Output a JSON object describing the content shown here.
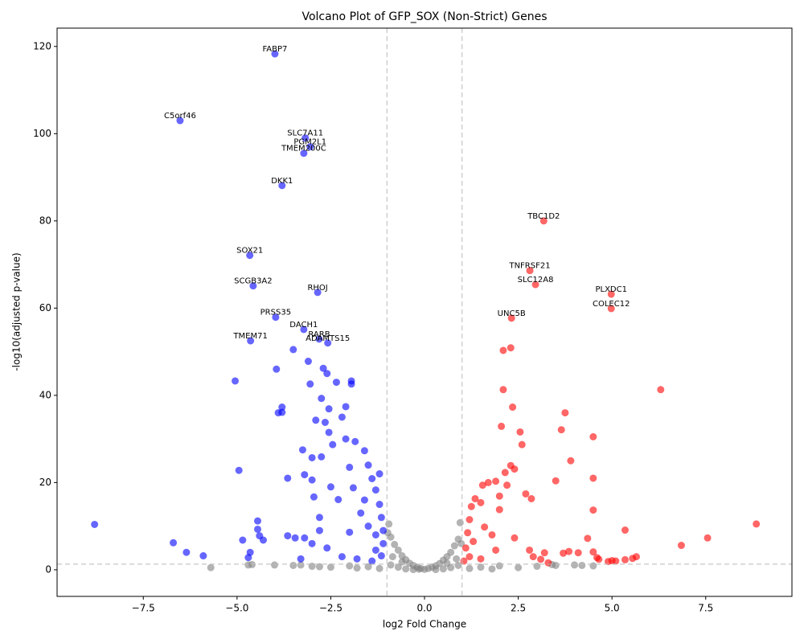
{
  "chart_data": {
    "type": "scatter",
    "title": "Volcano Plot of GFP_SOX (Non-Strict) Genes",
    "x_label": "log2 Fold Change",
    "y_label": "-log10(adjusted p-value)",
    "xlim": [
      -9.8,
      9.8
    ],
    "ylim": [
      -6.1,
      124.2
    ],
    "xticks": [
      {
        "value": -7.5,
        "label": "−7.5"
      },
      {
        "value": -5,
        "label": "−5.0"
      },
      {
        "value": -2.5,
        "label": "−2.5"
      },
      {
        "value": 0,
        "label": "0.0"
      },
      2.5,
      {
        "value": 5,
        "label": "5.0"
      },
      7.5
    ],
    "yticks": [
      0,
      20,
      40,
      60,
      80,
      100,
      120
    ],
    "grid": false,
    "vlines": [
      -1,
      1
    ],
    "hlines": [
      1.3
    ],
    "series": [
      {
        "color": "#808080",
        "x": [
          0,
          0.1,
          -0.1,
          0.2,
          -0.2,
          0.3,
          -0.3,
          0.4,
          -0.4,
          0.5,
          -0.5,
          0.6,
          -0.6,
          0.7,
          -0.7,
          0.8,
          -0.8,
          0.9,
          -0.9,
          0.95,
          -0.95,
          -0.98,
          0.98,
          0.5,
          -0.5,
          0.7,
          -0.7,
          0.9,
          -0.9,
          -0.85,
          0.85,
          -0.6,
          0.6,
          1.5,
          2,
          2.5,
          3,
          3.5,
          4,
          4.5,
          1.2,
          -1.2,
          -1.5,
          -2,
          -2.5,
          -3,
          -3.5,
          -4,
          -4.6,
          -4.7,
          -5.7,
          -3.3,
          -2.8,
          -1.8,
          3.4,
          4.2,
          1.8,
          -0.3,
          0.3,
          -0.15
        ],
        "values": [
          0.1,
          0.3,
          0.3,
          0.6,
          0.6,
          0.9,
          1,
          1.4,
          1.5,
          2.2,
          2.3,
          3,
          3.2,
          4,
          4.5,
          5.5,
          5.8,
          7,
          7.5,
          10.8,
          10.5,
          8.5,
          6,
          0.2,
          0.2,
          0.5,
          0.6,
          1,
          1.1,
          3,
          2.5,
          1.8,
          1.5,
          0.6,
          0.9,
          0.5,
          0.8,
          1,
          1.1,
          0.9,
          0.3,
          0.3,
          0.7,
          0.9,
          0.6,
          0.8,
          1,
          1.1,
          1.2,
          1.1,
          0.5,
          1.1,
          0.7,
          0.4,
          1.2,
          1,
          0.2,
          0.05,
          0.05,
          0.15
        ]
      },
      {
        "color": "#0000ff",
        "x": [
          -3.99,
          -6.52,
          -3.18,
          -3.05,
          -3.22,
          -3.8,
          -4.66,
          -4.57,
          -2.85,
          -3.97,
          -3.22,
          -2.81,
          -2.58,
          -4.64,
          -8.8,
          -6.7,
          -6.35,
          -5.9,
          -5.05,
          -4.95,
          -4.85,
          -4.7,
          -4.65,
          -4.45,
          -4.45,
          -4.4,
          -4.3,
          -3.95,
          -3.9,
          -3.8,
          -3.8,
          -3.65,
          -3.65,
          -3.5,
          -3.45,
          -3.25,
          -3.2,
          -3.2,
          -3.1,
          -3.05,
          -3,
          -3,
          -2.95,
          -2.9,
          -2.75,
          -2.75,
          -2.7,
          -2.65,
          -2.6,
          -2.55,
          -2.55,
          -2.45,
          -2.35,
          -2.2,
          -2.1,
          -2.1,
          -1.95,
          -1.95,
          -1.85,
          -1.6,
          -1.5,
          -1.4,
          -1.3,
          -1.2,
          -1.15,
          -1.1,
          -1.1,
          -1.15,
          -1.3,
          -1.5,
          -1.7,
          -1.9,
          -2,
          -2.3,
          -2.5,
          -2.8,
          -3,
          -2.2,
          -1.8,
          -1.4,
          -2.6,
          -3.3,
          -2.8,
          -2,
          -1.6,
          -1.3,
          -1.2
        ],
        "values": [
          118.3,
          103,
          99,
          97,
          95.5,
          88.1,
          72.1,
          65.1,
          63.6,
          57.9,
          55.1,
          52.9,
          52,
          52.5,
          10.4,
          6.2,
          4,
          3.2,
          43.3,
          22.8,
          6.8,
          2.8,
          4,
          11.2,
          9.3,
          7.8,
          6.8,
          46,
          36,
          37.3,
          36.1,
          21,
          7.8,
          50.5,
          7.3,
          27.5,
          21.8,
          7.3,
          47.8,
          42.6,
          25.7,
          20.6,
          16.7,
          34.3,
          39.3,
          25.9,
          46.2,
          33.8,
          45,
          36.9,
          31.5,
          28.7,
          43,
          35,
          37.4,
          30,
          43.3,
          42.6,
          29.4,
          27.3,
          24,
          20.9,
          18.3,
          15,
          12,
          9,
          6,
          3.2,
          4.5,
          10,
          13,
          18.8,
          8.6,
          16.1,
          19,
          9,
          6,
          3,
          2.5,
          2,
          5,
          2.5,
          12,
          23.5,
          16,
          8,
          22
        ]
      },
      {
        "color": "#ff0000",
        "x": [
          3.18,
          2.81,
          2.96,
          4.98,
          4.98,
          2.32,
          8.85,
          7.55,
          6.85,
          6.3,
          5.65,
          5.55,
          5.35,
          5.35,
          5.1,
          5,
          4.9,
          4.65,
          4.6,
          4.5,
          4.5,
          4.5,
          4.5,
          4.35,
          4.1,
          3.9,
          3.85,
          3.75,
          3.7,
          3.65,
          3.5,
          3.2,
          3.1,
          2.85,
          2.8,
          2.7,
          2.6,
          2.55,
          2.4,
          2.3,
          2.3,
          2.35,
          2.1,
          2.1,
          2.05,
          2.15,
          2.2,
          2,
          1.9,
          1.7,
          1.55,
          1.5,
          1.35,
          1.25,
          1.2,
          1.15,
          1.1,
          1.2,
          1.5,
          1.8,
          2,
          2.4,
          1.6,
          2.9,
          3.3,
          1.3,
          1.05,
          1.9
        ],
        "values": [
          80,
          68.6,
          65.4,
          63.2,
          59.9,
          57.7,
          10.5,
          7.3,
          5.6,
          41.3,
          3,
          2.6,
          9.1,
          2.3,
          2,
          2.1,
          1.9,
          2.4,
          2.8,
          21,
          13.7,
          30.5,
          4.1,
          7.2,
          3.9,
          25,
          4.2,
          36,
          3.8,
          32.1,
          20.4,
          3.9,
          2.4,
          16.3,
          4.5,
          17.4,
          28.7,
          31.6,
          23.1,
          23.9,
          50.9,
          37.3,
          50.3,
          41.3,
          32.9,
          22.3,
          19.4,
          16.9,
          20.3,
          20,
          19.4,
          15.4,
          16.3,
          14.5,
          11.5,
          8.5,
          5,
          3,
          2.5,
          8,
          13.8,
          7.3,
          9.8,
          3,
          1.6,
          6.5,
          2,
          4.5
        ]
      }
    ],
    "annotations": [
      {
        "text": "FABP7",
        "x": -3.99,
        "y": 118.3
      },
      {
        "text": "C5orf46",
        "x": -6.52,
        "y": 103
      },
      {
        "text": "SLC7A11",
        "x": -3.18,
        "y": 99
      },
      {
        "text": "PGM2L1",
        "x": -3.05,
        "y": 97
      },
      {
        "text": "TMEM200C",
        "x": -3.22,
        "y": 95.5
      },
      {
        "text": "DKK1",
        "x": -3.8,
        "y": 88.1
      },
      {
        "text": "SOX21",
        "x": -4.66,
        "y": 72.1
      },
      {
        "text": "SCGB3A2",
        "x": -4.57,
        "y": 65.1
      },
      {
        "text": "RHOJ",
        "x": -2.85,
        "y": 63.6
      },
      {
        "text": "PRSS35",
        "x": -3.97,
        "y": 57.9
      },
      {
        "text": "DACH1",
        "x": -3.22,
        "y": 55.1
      },
      {
        "text": "RARB",
        "x": -2.81,
        "y": 52.9
      },
      {
        "text": "ADAMTS15",
        "x": -2.58,
        "y": 52
      },
      {
        "text": "TMEM71",
        "x": -4.64,
        "y": 52.5
      },
      {
        "text": "TBC1D2",
        "x": 3.18,
        "y": 80
      },
      {
        "text": "TNFRSF21",
        "x": 2.81,
        "y": 68.6
      },
      {
        "text": "SLC12A8",
        "x": 2.96,
        "y": 65.4
      },
      {
        "text": "PLXDC1",
        "x": 4.98,
        "y": 63.2
      },
      {
        "text": "COLEC12",
        "x": 4.98,
        "y": 59.9
      },
      {
        "text": "UNC5B",
        "x": 2.32,
        "y": 57.7
      }
    ]
  }
}
